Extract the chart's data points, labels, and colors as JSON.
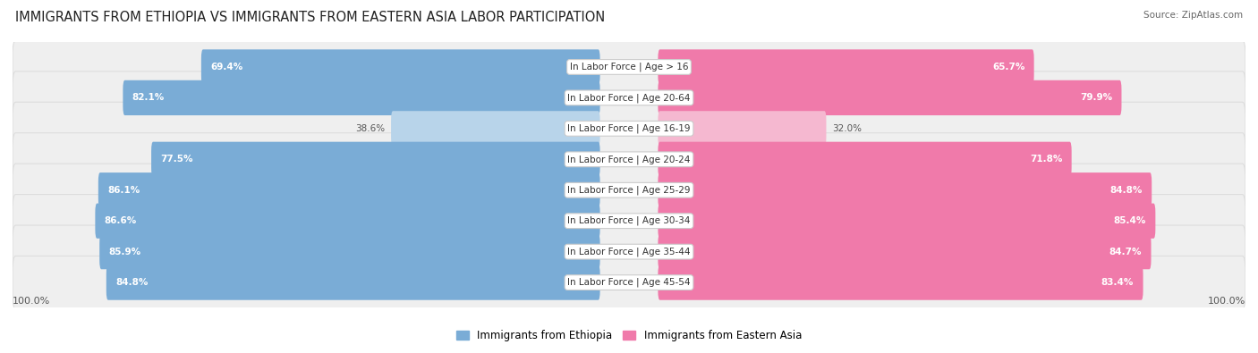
{
  "title": "IMMIGRANTS FROM ETHIOPIA VS IMMIGRANTS FROM EASTERN ASIA LABOR PARTICIPATION",
  "source": "Source: ZipAtlas.com",
  "categories": [
    "In Labor Force | Age > 16",
    "In Labor Force | Age 20-64",
    "In Labor Force | Age 16-19",
    "In Labor Force | Age 20-24",
    "In Labor Force | Age 25-29",
    "In Labor Force | Age 30-34",
    "In Labor Force | Age 35-44",
    "In Labor Force | Age 45-54"
  ],
  "ethiopia_values": [
    69.4,
    82.1,
    38.6,
    77.5,
    86.1,
    86.6,
    85.9,
    84.8
  ],
  "eastern_asia_values": [
    65.7,
    79.9,
    32.0,
    71.8,
    84.8,
    85.4,
    84.7,
    83.4
  ],
  "ethiopia_color": "#7aacd6",
  "ethiopia_color_light": "#b8d4ea",
  "eastern_asia_color": "#f07aaa",
  "eastern_asia_color_light": "#f5b8d0",
  "row_bg_color": "#efefef",
  "row_border_color": "#dddddd",
  "legend_ethiopia": "Immigrants from Ethiopia",
  "legend_eastern_asia": "Immigrants from Eastern Asia",
  "max_value": 100.0,
  "title_fontsize": 10.5,
  "label_fontsize": 7.5,
  "value_fontsize": 7.5,
  "source_fontsize": 7.5,
  "legend_fontsize": 8.5
}
